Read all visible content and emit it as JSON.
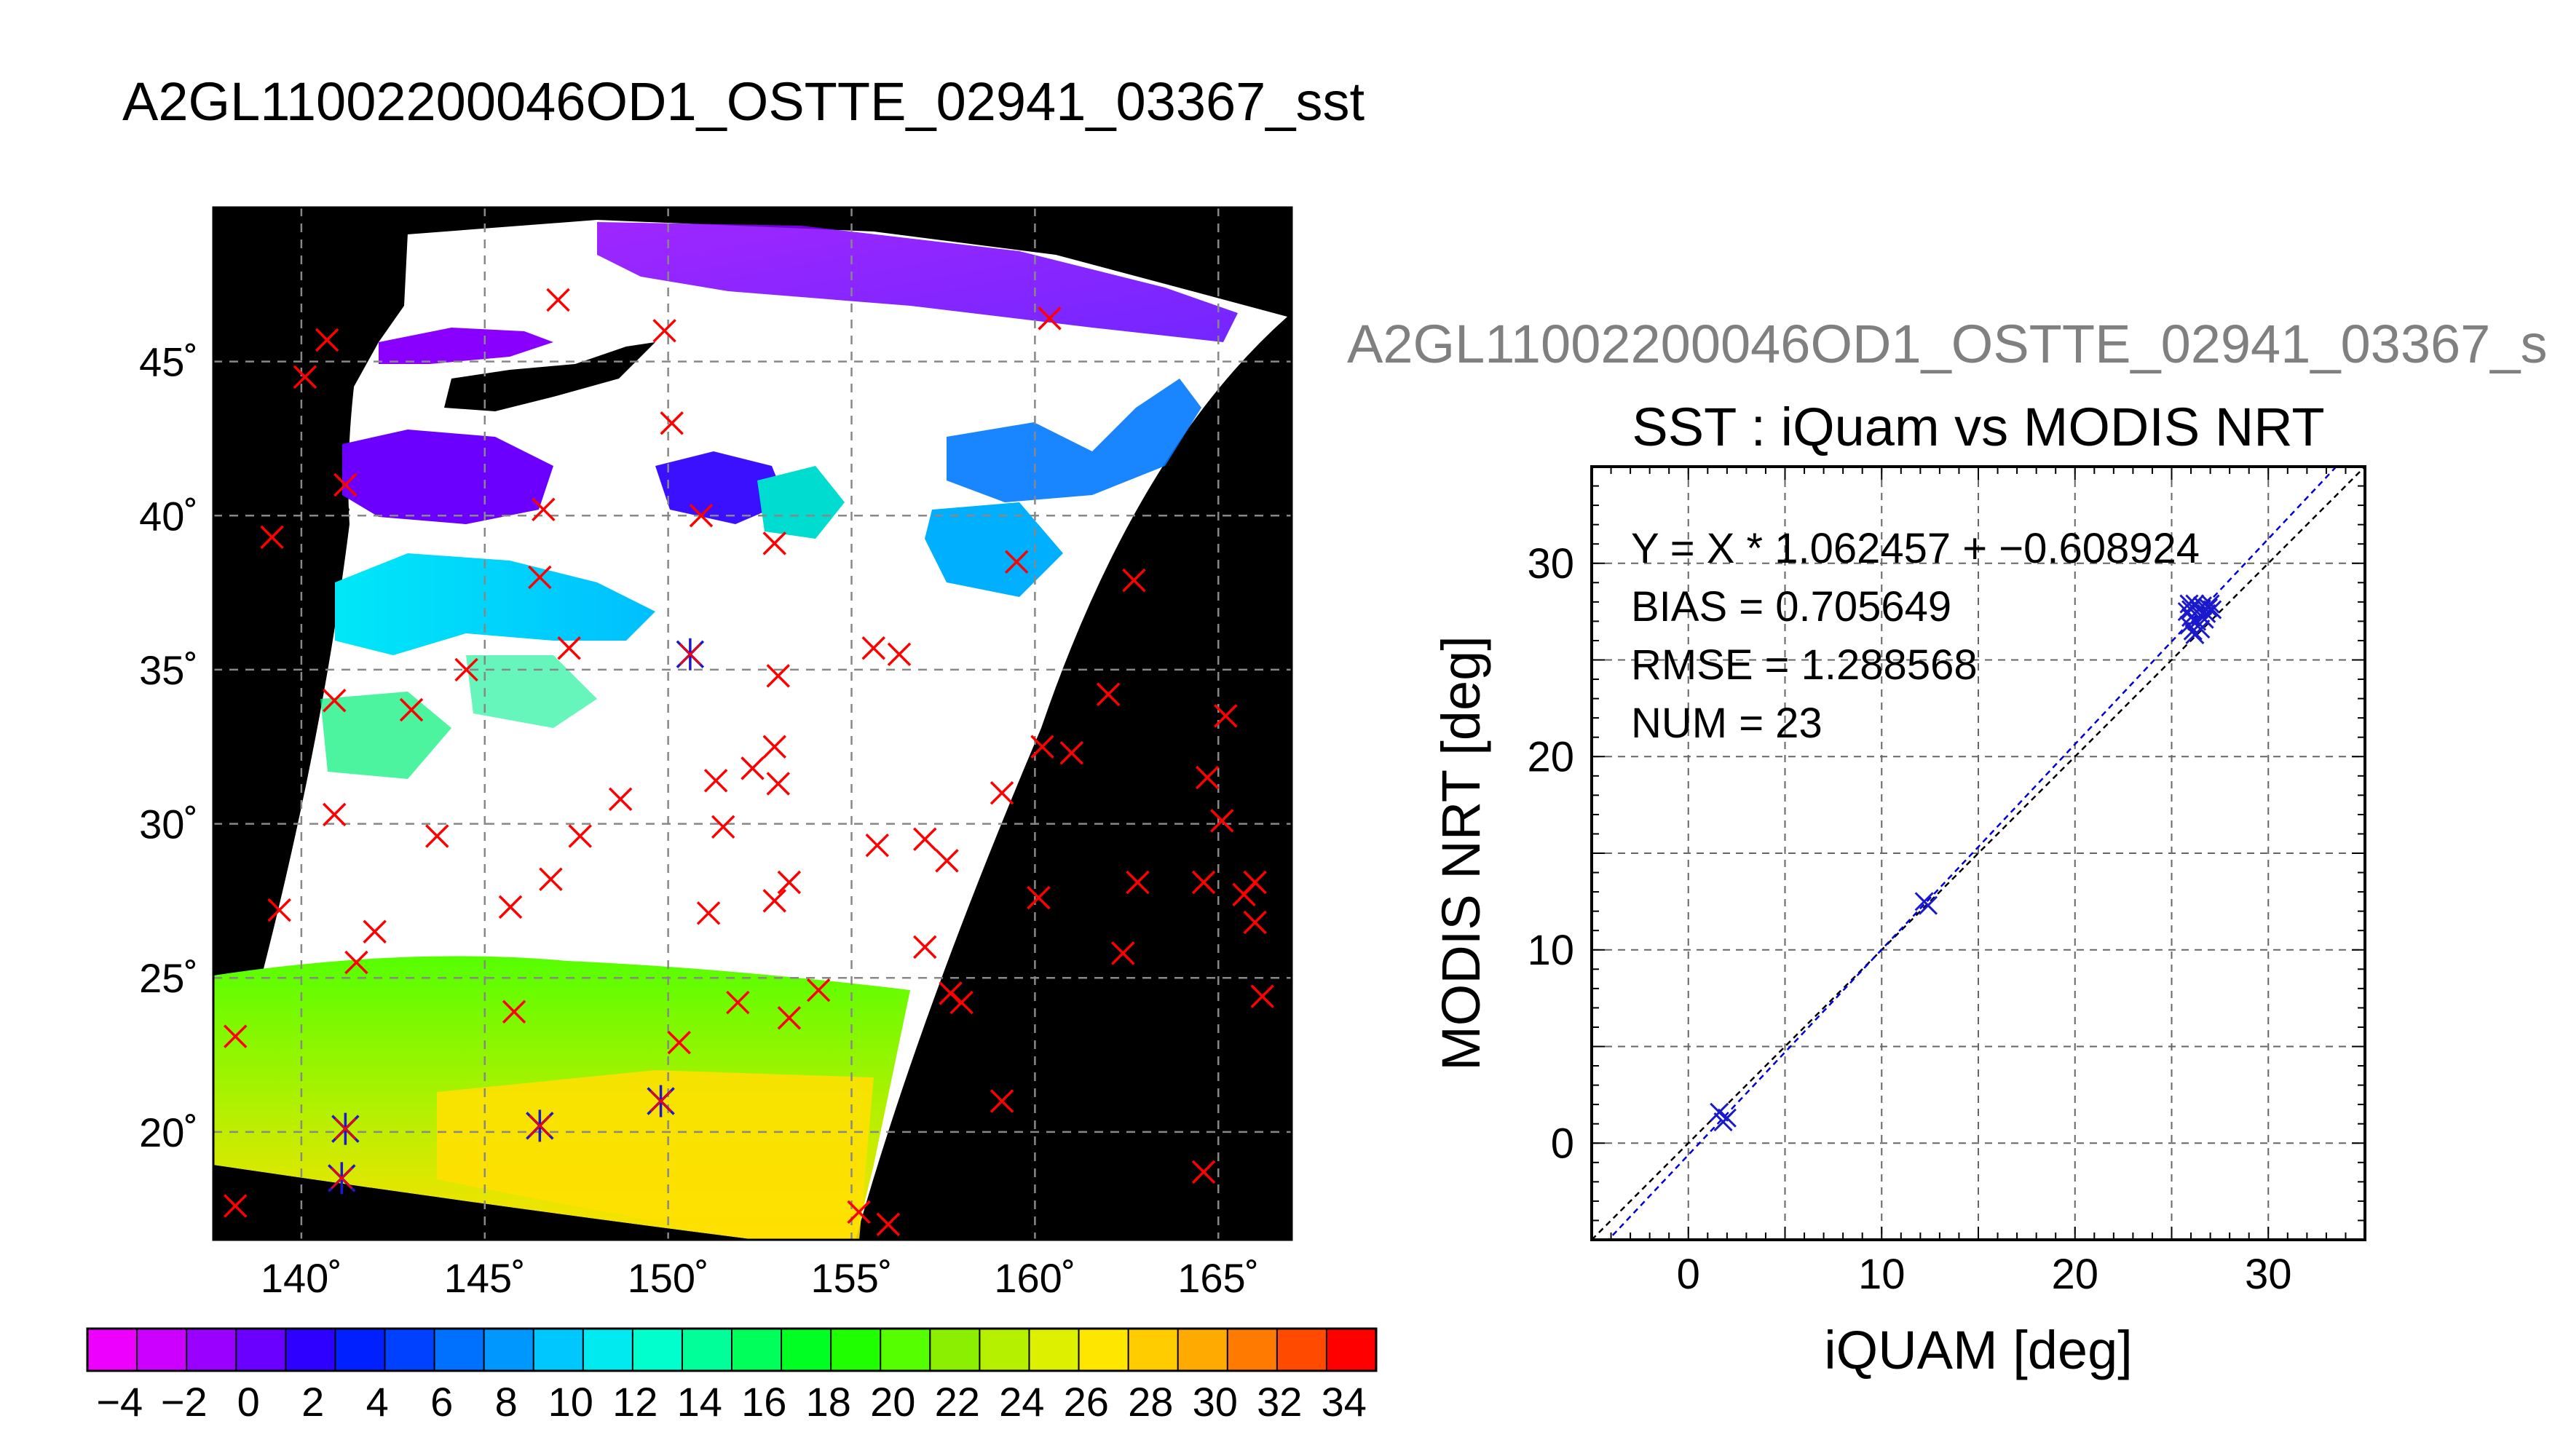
{
  "header": {
    "title": "A2GL11002200046OD1_OSTTE_02941_03367_sst",
    "subtitle": "A2GL11002200046OD1_OSTTE_02941_03367_s"
  },
  "colors": {
    "match_marker": "#ff0000",
    "used_marker": "#1a1acc",
    "regression_line": "#0000dd",
    "identity_line": "#000000",
    "map_background": "#000000",
    "cloud_fill": "#ffffff"
  },
  "map": {
    "lon_ticks": [
      {
        "value": 140,
        "label": "140˚"
      },
      {
        "value": 145,
        "label": "145˚"
      },
      {
        "value": 150,
        "label": "150˚"
      },
      {
        "value": 155,
        "label": "155˚"
      },
      {
        "value": 160,
        "label": "160˚"
      },
      {
        "value": 165,
        "label": "165˚"
      }
    ],
    "lat_ticks": [
      {
        "value": 20,
        "label": "20˚"
      },
      {
        "value": 25,
        "label": "25˚"
      },
      {
        "value": 30,
        "label": "30˚"
      },
      {
        "value": 35,
        "label": "35˚"
      },
      {
        "value": 40,
        "label": "40˚"
      },
      {
        "value": 45,
        "label": "45˚"
      }
    ],
    "lon_range": [
      137.6,
      167.0
    ],
    "lat_range": [
      16.5,
      50.0
    ],
    "matches": [
      [
        147.0,
        47.0
      ],
      [
        149.9,
        46.0
      ],
      [
        140.7,
        45.7
      ],
      [
        140.1,
        44.5
      ],
      [
        150.1,
        43.0
      ],
      [
        141.2,
        41.0
      ],
      [
        160.4,
        46.4
      ],
      [
        139.2,
        39.3
      ],
      [
        146.6,
        40.2
      ],
      [
        146.5,
        38.0
      ],
      [
        150.9,
        40.0
      ],
      [
        152.9,
        39.1
      ],
      [
        159.5,
        38.5
      ],
      [
        162.7,
        37.9
      ],
      [
        147.3,
        35.7
      ],
      [
        144.5,
        35.0
      ],
      [
        155.6,
        35.7
      ],
      [
        156.3,
        35.5
      ],
      [
        153.0,
        34.8
      ],
      [
        140.9,
        34.0
      ],
      [
        143.0,
        33.7
      ],
      [
        162.0,
        34.2
      ],
      [
        165.2,
        33.5
      ],
      [
        152.9,
        32.5
      ],
      [
        152.3,
        31.8
      ],
      [
        153.0,
        31.3
      ],
      [
        160.2,
        32.5
      ],
      [
        161.0,
        32.3
      ],
      [
        151.3,
        31.4
      ],
      [
        164.7,
        31.5
      ],
      [
        148.7,
        30.8
      ],
      [
        159.1,
        31.0
      ],
      [
        140.9,
        30.3
      ],
      [
        165.1,
        30.1
      ],
      [
        143.7,
        29.6
      ],
      [
        147.6,
        29.6
      ],
      [
        151.5,
        29.9
      ],
      [
        155.7,
        29.3
      ],
      [
        157.0,
        29.5
      ],
      [
        157.6,
        28.8
      ],
      [
        146.8,
        28.2
      ],
      [
        153.3,
        28.1
      ],
      [
        152.9,
        27.5
      ],
      [
        162.8,
        28.1
      ],
      [
        164.6,
        28.1
      ],
      [
        166.0,
        28.1
      ],
      [
        139.4,
        27.2
      ],
      [
        145.7,
        27.3
      ],
      [
        151.1,
        27.1
      ],
      [
        160.1,
        27.6
      ],
      [
        165.7,
        27.7
      ],
      [
        166.0,
        26.8
      ],
      [
        142.0,
        26.5
      ],
      [
        141.5,
        25.5
      ],
      [
        157.0,
        26.0
      ],
      [
        162.4,
        25.8
      ],
      [
        154.1,
        24.6
      ],
      [
        157.7,
        24.5
      ],
      [
        158.0,
        24.2
      ],
      [
        145.8,
        23.9
      ],
      [
        151.9,
        24.2
      ],
      [
        153.3,
        23.7
      ],
      [
        166.2,
        24.4
      ],
      [
        138.2,
        23.1
      ],
      [
        150.3,
        22.9
      ],
      [
        159.1,
        21.0
      ],
      [
        164.6,
        18.7
      ],
      [
        138.2,
        17.6
      ],
      [
        155.2,
        17.4
      ],
      [
        156.0,
        17.0
      ]
    ],
    "used": [
      [
        150.6,
        35.5
      ],
      [
        141.2,
        20.1
      ],
      [
        146.5,
        20.2
      ],
      [
        149.8,
        21.0
      ],
      [
        141.1,
        18.5
      ]
    ]
  },
  "colorbar": {
    "min": -5,
    "max": 35,
    "tick_labels": [
      "−4",
      "−2",
      "0",
      "2",
      "4",
      "6",
      "8",
      "10",
      "12",
      "14",
      "16",
      "18",
      "20",
      "22",
      "24",
      "26",
      "28",
      "30",
      "32",
      "34"
    ],
    "tick_values": [
      -4,
      -2,
      0,
      2,
      4,
      6,
      8,
      10,
      12,
      14,
      16,
      18,
      20,
      22,
      24,
      26,
      28,
      30,
      32,
      34
    ],
    "colors": [
      "#ee00ff",
      "#cc00ff",
      "#9900ff",
      "#6a00ff",
      "#2e00ff",
      "#0020ff",
      "#0040ff",
      "#0070ff",
      "#0098ff",
      "#00c8ff",
      "#00eaf0",
      "#00ffcc",
      "#00ff99",
      "#00ff5a",
      "#00ff22",
      "#20ff00",
      "#55ff00",
      "#8aef00",
      "#b4f000",
      "#dcf000",
      "#ffe600",
      "#ffcc00",
      "#ffaa00",
      "#ff7a00",
      "#ff4a00",
      "#ff0000"
    ]
  },
  "chart_data": {
    "type": "scatter",
    "title": "SST : iQuam vs MODIS NRT",
    "xlabel": "iQUAM [deg]",
    "ylabel": "MODIS NRT [deg]",
    "xlim": [
      -5,
      35
    ],
    "ylim": [
      -5,
      35
    ],
    "xticks": [
      0,
      10,
      20,
      30
    ],
    "yticks": [
      0,
      10,
      20,
      30
    ],
    "grid": true,
    "annotations": [
      "Y = X * 1.062457 + −0.608924",
      "BIAS = 0.705649",
      "RMSE = 1.288568",
      "NUM = 23"
    ],
    "regression": {
      "slope": 1.062457,
      "intercept": -0.608924
    },
    "points": [
      [
        1.6,
        1.6
      ],
      [
        1.8,
        1.1
      ],
      [
        2.0,
        1.3
      ],
      [
        12.2,
        12.5
      ],
      [
        12.4,
        12.3
      ],
      [
        25.8,
        27.5
      ],
      [
        25.9,
        26.8
      ],
      [
        26.0,
        27.2
      ],
      [
        26.1,
        26.5
      ],
      [
        26.2,
        27.9
      ],
      [
        26.3,
        27.0
      ],
      [
        26.4,
        27.6
      ],
      [
        26.5,
        27.3
      ],
      [
        26.6,
        27.8
      ],
      [
        26.7,
        27.1
      ],
      [
        26.8,
        27.4
      ],
      [
        26.9,
        27.7
      ],
      [
        27.0,
        27.9
      ],
      [
        26.2,
        26.3
      ],
      [
        25.9,
        27.9
      ],
      [
        26.5,
        26.6
      ],
      [
        27.1,
        27.6
      ],
      [
        26.0,
        27.6
      ]
    ]
  }
}
